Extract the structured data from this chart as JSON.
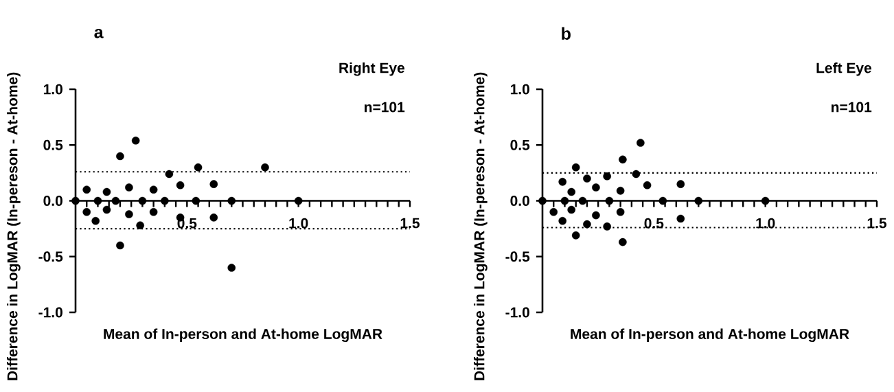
{
  "chart_data": [
    {
      "type": "scatter",
      "annotations": [
        "a",
        "Right Eye",
        "n=101"
      ],
      "xlabel": "Mean of In-person and At-home LogMAR",
      "ylabel": "Difference in LogMAR (In-pereson - At-home)",
      "xlim": [
        0,
        1.5
      ],
      "ylim": [
        -1,
        1
      ],
      "xticks": [
        {
          "value": 0.05,
          "label": null
        },
        {
          "value": 0.1,
          "label": null
        },
        {
          "value": 0.15,
          "label": null
        },
        {
          "value": 0.2,
          "label": null
        },
        {
          "value": 0.25,
          "label": null
        },
        {
          "value": 0.3,
          "label": null
        },
        {
          "value": 0.35,
          "label": null
        },
        {
          "value": 0.4,
          "label": null
        },
        {
          "value": 0.45,
          "label": null
        },
        {
          "value": 0.5,
          "label": "0.5"
        },
        {
          "value": 0.55,
          "label": null
        },
        {
          "value": 0.6,
          "label": null
        },
        {
          "value": 0.65,
          "label": null
        },
        {
          "value": 0.7,
          "label": null
        },
        {
          "value": 0.75,
          "label": null
        },
        {
          "value": 0.8,
          "label": null
        },
        {
          "value": 0.85,
          "label": null
        },
        {
          "value": 0.9,
          "label": null
        },
        {
          "value": 0.95,
          "label": null
        },
        {
          "value": 1.0,
          "label": "1.0"
        },
        {
          "value": 1.05,
          "label": null
        },
        {
          "value": 1.1,
          "label": null
        },
        {
          "value": 1.15,
          "label": null
        },
        {
          "value": 1.2,
          "label": null
        },
        {
          "value": 1.25,
          "label": null
        },
        {
          "value": 1.3,
          "label": null
        },
        {
          "value": 1.35,
          "label": null
        },
        {
          "value": 1.4,
          "label": null
        },
        {
          "value": 1.45,
          "label": null
        },
        {
          "value": 1.5,
          "label": "1.5"
        }
      ],
      "yticks": [
        {
          "value": -1,
          "label": "-1.0"
        },
        {
          "value": -0.5,
          "label": "-0.5"
        },
        {
          "value": 0,
          "label": "0.0"
        },
        {
          "value": 0.5,
          "label": "0.5"
        },
        {
          "value": 1,
          "label": "1.0"
        }
      ],
      "grid": false,
      "ref_lines": [
        {
          "axis": "y",
          "value": 0.26,
          "color": "#000000",
          "line_style": "dotted"
        },
        {
          "axis": "y",
          "value": -0.25,
          "color": "#000000",
          "line_style": "dotted"
        }
      ],
      "series": [
        {
          "color": "#000000",
          "x": [
            0,
            0.05,
            0.05,
            0.09,
            0.1,
            0.14,
            0.14,
            0.18,
            0.2,
            0.2,
            0.24,
            0.24,
            0.27,
            0.29,
            0.3,
            0.35,
            0.35,
            0.4,
            0.42,
            0.47,
            0.47,
            0.55,
            0.54,
            0.62,
            0.62,
            0.7,
            0.7,
            0.85,
            1.0
          ],
          "values": [
            0,
            0.1,
            -0.1,
            -0.18,
            0,
            0.08,
            -0.08,
            0,
            0.4,
            -0.4,
            0.12,
            -0.12,
            0.54,
            -0.22,
            0,
            0.1,
            -0.1,
            0,
            0.24,
            0.14,
            -0.15,
            0.3,
            0,
            0.15,
            -0.15,
            0,
            -0.6,
            0.3,
            0
          ]
        }
      ]
    },
    {
      "type": "scatter",
      "annotations": [
        "b",
        "Left Eye",
        "n=101"
      ],
      "xlabel": "Mean of In-person and At-home LogMAR",
      "ylabel": "Difference in LogMAR (In-pereson - At-home)",
      "xlim": [
        0,
        1.5
      ],
      "ylim": [
        -1,
        1
      ],
      "xticks": [
        {
          "value": 0.05,
          "label": null
        },
        {
          "value": 0.1,
          "label": null
        },
        {
          "value": 0.15,
          "label": null
        },
        {
          "value": 0.2,
          "label": null
        },
        {
          "value": 0.25,
          "label": null
        },
        {
          "value": 0.3,
          "label": null
        },
        {
          "value": 0.35,
          "label": null
        },
        {
          "value": 0.4,
          "label": null
        },
        {
          "value": 0.45,
          "label": null
        },
        {
          "value": 0.5,
          "label": "0.5"
        },
        {
          "value": 0.55,
          "label": null
        },
        {
          "value": 0.6,
          "label": null
        },
        {
          "value": 0.65,
          "label": null
        },
        {
          "value": 0.7,
          "label": null
        },
        {
          "value": 0.75,
          "label": null
        },
        {
          "value": 0.8,
          "label": null
        },
        {
          "value": 0.85,
          "label": null
        },
        {
          "value": 0.9,
          "label": null
        },
        {
          "value": 0.95,
          "label": null
        },
        {
          "value": 1.0,
          "label": "1.0"
        },
        {
          "value": 1.05,
          "label": null
        },
        {
          "value": 1.1,
          "label": null
        },
        {
          "value": 1.15,
          "label": null
        },
        {
          "value": 1.2,
          "label": null
        },
        {
          "value": 1.25,
          "label": null
        },
        {
          "value": 1.3,
          "label": null
        },
        {
          "value": 1.35,
          "label": null
        },
        {
          "value": 1.4,
          "label": null
        },
        {
          "value": 1.45,
          "label": null
        },
        {
          "value": 1.5,
          "label": "1.5"
        }
      ],
      "yticks": [
        {
          "value": -1,
          "label": "-1.0"
        },
        {
          "value": -0.5,
          "label": "-0.5"
        },
        {
          "value": 0,
          "label": "0.0"
        },
        {
          "value": 0.5,
          "label": "0.5"
        },
        {
          "value": 1,
          "label": "1.0"
        }
      ],
      "grid": false,
      "ref_lines": [
        {
          "axis": "y",
          "value": 0.25,
          "color": "#000000",
          "line_style": "dotted"
        },
        {
          "axis": "y",
          "value": -0.24,
          "color": "#000000",
          "line_style": "dotted"
        }
      ],
      "series": [
        {
          "color": "#000000",
          "x": [
            0,
            0.05,
            0.09,
            0.09,
            0.1,
            0.13,
            0.13,
            0.15,
            0.15,
            0.18,
            0.2,
            0.2,
            0.24,
            0.24,
            0.29,
            0.29,
            0.3,
            0.35,
            0.35,
            0.36,
            0.36,
            0.42,
            0.44,
            0.47,
            0.54,
            0.62,
            0.62,
            0.7,
            1.0
          ],
          "values": [
            0,
            -0.1,
            0.17,
            -0.18,
            0,
            0.08,
            -0.08,
            0.3,
            -0.31,
            0,
            0.2,
            -0.21,
            0.12,
            -0.13,
            0.22,
            -0.23,
            0,
            0.09,
            -0.1,
            0.37,
            -0.37,
            0.24,
            0.52,
            0.14,
            0,
            0.15,
            -0.16,
            0,
            0
          ]
        }
      ]
    }
  ]
}
